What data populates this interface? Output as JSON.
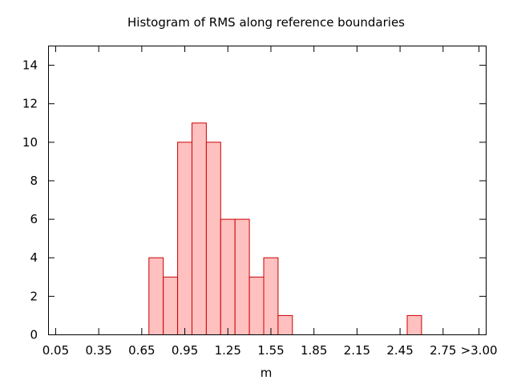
{
  "chart_data": {
    "type": "bar",
    "title": "Histogram of RMS along reference boundaries",
    "xlabel": "m",
    "ylabel": "",
    "xlim": [
      0,
      3.05
    ],
    "ylim": [
      0,
      15
    ],
    "grid": false,
    "legend": "none",
    "colors": {
      "bar_fill": "#ffc0c0",
      "bar_stroke": "#cc0000",
      "axis": "#000000"
    },
    "bin_width": 0.1,
    "bins": [
      {
        "start": 0.7,
        "value": 4
      },
      {
        "start": 0.8,
        "value": 3
      },
      {
        "start": 0.9,
        "value": 10
      },
      {
        "start": 1.0,
        "value": 11
      },
      {
        "start": 1.1,
        "value": 10
      },
      {
        "start": 1.2,
        "value": 6
      },
      {
        "start": 1.3,
        "value": 6
      },
      {
        "start": 1.4,
        "value": 3
      },
      {
        "start": 1.5,
        "value": 4
      },
      {
        "start": 1.6,
        "value": 1
      },
      {
        "start": 2.5,
        "value": 1
      }
    ],
    "x_ticks": [
      {
        "value": 0.05,
        "label": "0.05"
      },
      {
        "value": 0.35,
        "label": "0.35"
      },
      {
        "value": 0.65,
        "label": "0.65"
      },
      {
        "value": 0.95,
        "label": "0.95"
      },
      {
        "value": 1.25,
        "label": "1.25"
      },
      {
        "value": 1.55,
        "label": "1.55"
      },
      {
        "value": 1.85,
        "label": "1.85"
      },
      {
        "value": 2.15,
        "label": "2.15"
      },
      {
        "value": 2.45,
        "label": "2.45"
      },
      {
        "value": 2.75,
        "label": "2.75"
      },
      {
        "value": 3.0,
        "label": ">3.00"
      }
    ],
    "y_ticks": [
      {
        "value": 0,
        "label": "0"
      },
      {
        "value": 2,
        "label": "2"
      },
      {
        "value": 4,
        "label": "4"
      },
      {
        "value": 6,
        "label": "6"
      },
      {
        "value": 8,
        "label": "8"
      },
      {
        "value": 10,
        "label": "10"
      },
      {
        "value": 12,
        "label": "12"
      },
      {
        "value": 14,
        "label": "14"
      }
    ]
  }
}
